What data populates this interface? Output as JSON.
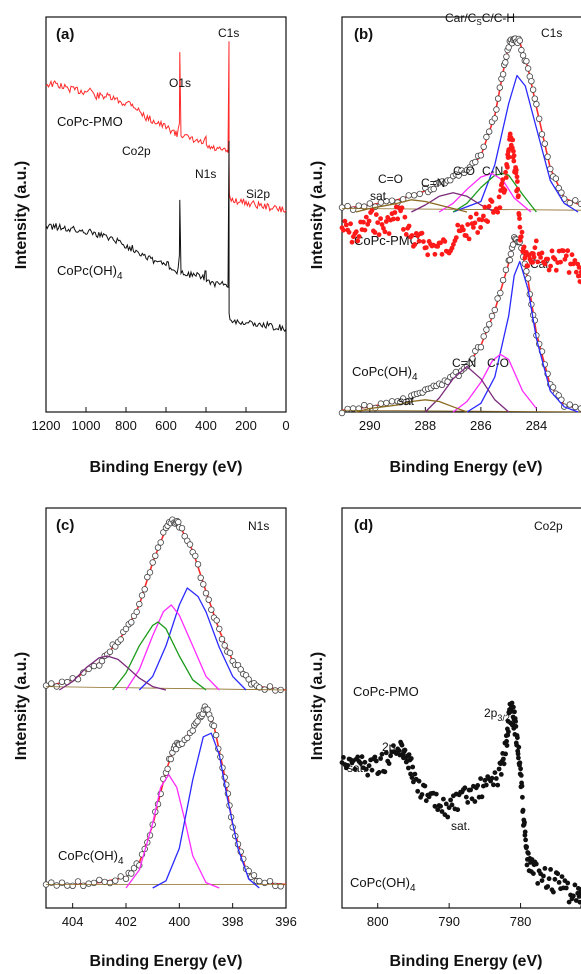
{
  "chart_data": [
    {
      "panel": "(a)",
      "type": "line",
      "xlabel": "Binding Energy (eV)",
      "ylabel": "Intensity (a.u.)",
      "xlim": [
        1200,
        0
      ],
      "xticks": [
        "1200",
        "1000",
        "800",
        "600",
        "400",
        "200",
        "0"
      ],
      "annotations": [
        "C1s",
        "O1s",
        "Co2p",
        "N1s",
        "Si2p"
      ],
      "series": [
        {
          "name": "CoPc-PMO",
          "color": "#ff2a2a",
          "x": [
            1200,
            1150,
            1100,
            1050,
            1000,
            980,
            960,
            900,
            850,
            800,
            780,
            750,
            700,
            650,
            600,
            560,
            545,
            533,
            531,
            525,
            500,
            450,
            410,
            400,
            398,
            390,
            350,
            300,
            290,
            285,
            284.5,
            283,
            280,
            250,
            200,
            150,
            100,
            50,
            0
          ],
          "y": [
            0.83,
            0.83,
            0.82,
            0.815,
            0.81,
            0.82,
            0.8,
            0.8,
            0.79,
            0.78,
            0.785,
            0.77,
            0.745,
            0.735,
            0.72,
            0.71,
            0.7,
            0.735,
            0.915,
            0.705,
            0.695,
            0.685,
            0.68,
            0.695,
            0.675,
            0.67,
            0.665,
            0.66,
            0.66,
            0.93,
            0.62,
            0.555,
            0.54,
            0.535,
            0.53,
            0.525,
            0.52,
            0.515,
            0.51
          ]
        },
        {
          "name": "CoPc(OH)4",
          "color": "#111111",
          "x": [
            1200,
            1150,
            1100,
            1050,
            1000,
            980,
            960,
            900,
            850,
            800,
            750,
            700,
            650,
            600,
            560,
            545,
            533,
            531,
            525,
            500,
            450,
            410,
            400,
            398,
            390,
            350,
            300,
            290,
            285,
            284.5,
            280,
            250,
            200,
            150,
            100,
            50,
            0
          ],
          "y": [
            0.47,
            0.47,
            0.465,
            0.46,
            0.455,
            0.465,
            0.45,
            0.445,
            0.435,
            0.42,
            0.41,
            0.395,
            0.38,
            0.375,
            0.365,
            0.355,
            0.39,
            0.545,
            0.355,
            0.35,
            0.345,
            0.34,
            0.36,
            0.335,
            0.33,
            0.325,
            0.32,
            0.318,
            0.69,
            0.245,
            0.235,
            0.23,
            0.225,
            0.222,
            0.22,
            0.215,
            0.21
          ]
        }
      ]
    },
    {
      "panel": "(b)",
      "type": "line",
      "title": "C1s",
      "xlabel": "Binding Energy (eV)",
      "ylabel": "Intensity (a.u.)",
      "xlim": [
        291,
        282
      ],
      "xticks": [
        "290",
        "288",
        "286",
        "284",
        "282"
      ],
      "annotations": [
        "Car/CsC/C-H",
        "C=O",
        "C=N",
        "C-O",
        "C-N",
        "sat",
        "Car",
        "C=N",
        "C-O",
        "sat"
      ],
      "samples": [
        "CoPc-PMO",
        "CoPc(OH)4"
      ],
      "series": [
        {
          "name": "CoPc-PMO envelope",
          "color": "#ff2a2a",
          "x": [
            291,
            290,
            289,
            288,
            287.5,
            287,
            286.5,
            286,
            285.5,
            285.2,
            285,
            284.8,
            284.6,
            284.3,
            284,
            283.5,
            283,
            282
          ],
          "y": [
            0.02,
            0.04,
            0.07,
            0.12,
            0.16,
            0.2,
            0.24,
            0.32,
            0.55,
            0.8,
            0.95,
            1.0,
            0.97,
            0.82,
            0.6,
            0.25,
            0.08,
            0.01
          ]
        },
        {
          "name": "CoPc-PMO Car/CsC/C-H",
          "color": "#2a2aff",
          "x": [
            287,
            286,
            285.5,
            285,
            284.7,
            284.4,
            284,
            283.5,
            283,
            282.5
          ],
          "y": [
            0.0,
            0.06,
            0.27,
            0.62,
            0.78,
            0.72,
            0.48,
            0.18,
            0.05,
            0.0
          ]
        },
        {
          "name": "CoPc-PMO C-N",
          "color": "#1a9a1a",
          "x": [
            287,
            286.5,
            286,
            285.5,
            285.2,
            285,
            284.5,
            284
          ],
          "y": [
            0.0,
            0.05,
            0.14,
            0.21,
            0.22,
            0.21,
            0.1,
            0.0
          ]
        },
        {
          "name": "CoPc-PMO C-O",
          "color": "#ff2aff",
          "x": [
            287.5,
            287,
            286.5,
            286,
            285.6,
            285.2,
            284.8,
            284.2
          ],
          "y": [
            0.0,
            0.05,
            0.13,
            0.2,
            0.22,
            0.18,
            0.08,
            0.0
          ]
        },
        {
          "name": "CoPc-PMO C=N",
          "color": "#7a2a7a",
          "x": [
            288.5,
            288,
            287.5,
            287,
            286.5,
            286,
            285.5
          ],
          "y": [
            0.0,
            0.04,
            0.09,
            0.11,
            0.09,
            0.04,
            0.0
          ]
        },
        {
          "name": "CoPc-PMO C=O",
          "color": "#8a6a20",
          "x": [
            290.5,
            290,
            289,
            288.5,
            288,
            287.5,
            287,
            286.5
          ],
          "y": [
            0.0,
            0.02,
            0.05,
            0.07,
            0.06,
            0.04,
            0.02,
            0.0
          ]
        },
        {
          "name": "CoPc(OH)4 envelope",
          "color": "#ff2a2a",
          "x": [
            291,
            290,
            289,
            288.5,
            288,
            287.5,
            287,
            286.5,
            286,
            285.5,
            285,
            284.8,
            284.6,
            284.3,
            284,
            283.5,
            283,
            282
          ],
          "y": [
            0.01,
            0.03,
            0.06,
            0.08,
            0.12,
            0.16,
            0.2,
            0.26,
            0.38,
            0.58,
            0.85,
            1.0,
            0.98,
            0.75,
            0.45,
            0.15,
            0.04,
            0.0
          ]
        },
        {
          "name": "CoPc(OH)4 Car",
          "color": "#2a2aff",
          "x": [
            286.5,
            286,
            285.5,
            285,
            284.8,
            284.6,
            284.3,
            284,
            283.5,
            283,
            282.5
          ],
          "y": [
            0.0,
            0.05,
            0.2,
            0.55,
            0.78,
            0.86,
            0.7,
            0.42,
            0.12,
            0.03,
            0.0
          ]
        },
        {
          "name": "CoPc(OH)4 C-O",
          "color": "#ff2aff",
          "x": [
            287,
            286.5,
            286,
            285.6,
            285.3,
            285,
            284.5,
            284
          ],
          "y": [
            0.0,
            0.06,
            0.17,
            0.29,
            0.33,
            0.3,
            0.12,
            0.02
          ]
        },
        {
          "name": "CoPc(OH)4 C=N",
          "color": "#7a2a7a",
          "x": [
            288,
            287.5,
            287,
            286.5,
            286,
            285.5,
            285
          ],
          "y": [
            0.0,
            0.08,
            0.19,
            0.26,
            0.19,
            0.07,
            0.0
          ]
        },
        {
          "name": "CoPc(OH)4 sat",
          "color": "#8a6a20",
          "x": [
            290.5,
            290,
            289,
            288.5,
            288,
            287.5,
            287,
            286.5
          ],
          "y": [
            0.0,
            0.02,
            0.04,
            0.06,
            0.07,
            0.06,
            0.03,
            0.0
          ]
        }
      ]
    },
    {
      "panel": "(c)",
      "type": "line",
      "title": "N1s",
      "xlabel": "Binding Energy (eV)",
      "ylabel": "Intensity (a.u.)",
      "xlim": [
        405,
        396
      ],
      "xticks": [
        "404",
        "402",
        "400",
        "398",
        "396"
      ],
      "samples": [
        "CoPc(OH)4"
      ],
      "series": [
        {
          "name": "CoPc-PMO envelope",
          "color": "#ff2a2a",
          "x": [
            405,
            404,
            403,
            402.5,
            402,
            401.5,
            401,
            400.5,
            400.2,
            400,
            399.5,
            399,
            398.5,
            398,
            397.5,
            397,
            396
          ],
          "y": [
            0.02,
            0.06,
            0.16,
            0.25,
            0.35,
            0.5,
            0.75,
            0.95,
            1.0,
            0.97,
            0.82,
            0.58,
            0.35,
            0.17,
            0.07,
            0.02,
            0.0
          ]
        },
        {
          "name": "CoPc-PMO blue",
          "color": "#2a2aff",
          "x": [
            401.5,
            401,
            400.5,
            400,
            399.7,
            399.3,
            399,
            398.5,
            398,
            397.5
          ],
          "y": [
            0.0,
            0.08,
            0.26,
            0.5,
            0.6,
            0.55,
            0.46,
            0.25,
            0.08,
            0.0
          ]
        },
        {
          "name": "CoPc-PMO magenta",
          "color": "#ff2aff",
          "x": [
            402,
            401.5,
            401,
            400.6,
            400.3,
            400,
            399.5,
            399,
            398.5
          ],
          "y": [
            0.0,
            0.12,
            0.32,
            0.46,
            0.5,
            0.44,
            0.26,
            0.08,
            0.0
          ]
        },
        {
          "name": "CoPc-PMO green",
          "color": "#1a9a1a",
          "x": [
            402.5,
            402,
            401.5,
            401,
            400.8,
            400.5,
            400,
            399.5,
            399
          ],
          "y": [
            0.0,
            0.1,
            0.26,
            0.38,
            0.4,
            0.36,
            0.2,
            0.06,
            0.0
          ]
        },
        {
          "name": "CoPc-PMO purple",
          "color": "#7a2a7a",
          "x": [
            404.5,
            404,
            403.5,
            403,
            402.7,
            402.3,
            402,
            401.5,
            401,
            400.5
          ],
          "y": [
            0.0,
            0.05,
            0.13,
            0.19,
            0.2,
            0.18,
            0.14,
            0.07,
            0.02,
            0.0
          ]
        },
        {
          "name": "CoPc(OH)4 envelope",
          "color": "#ff2a2a",
          "x": [
            405,
            404,
            403,
            402,
            401.5,
            401,
            400.5,
            400.2,
            400,
            399.5,
            399.2,
            399,
            398.7,
            398.3,
            398,
            397.5,
            397,
            396
          ],
          "y": [
            0.02,
            0.02,
            0.03,
            0.06,
            0.14,
            0.35,
            0.65,
            0.78,
            0.8,
            0.88,
            0.96,
            1.0,
            0.9,
            0.62,
            0.35,
            0.1,
            0.03,
            0.02
          ]
        },
        {
          "name": "CoPc(OH)4 magenta",
          "color": "#ff2aff",
          "x": [
            402,
            401.5,
            401,
            400.7,
            400.4,
            400.1,
            399.8,
            399.5,
            399,
            398.5
          ],
          "y": [
            0.0,
            0.1,
            0.36,
            0.56,
            0.63,
            0.56,
            0.38,
            0.18,
            0.03,
            0.0
          ]
        },
        {
          "name": "CoPc(OH)4 blue",
          "color": "#2a2aff",
          "x": [
            401,
            400.5,
            400,
            399.5,
            399.1,
            398.8,
            398.5,
            398.2,
            397.8,
            397.4,
            397
          ],
          "y": [
            0.0,
            0.04,
            0.22,
            0.6,
            0.84,
            0.86,
            0.74,
            0.5,
            0.22,
            0.05,
            0.0
          ]
        }
      ]
    },
    {
      "panel": "(d)",
      "type": "scatter",
      "title": "Co2p",
      "xlabel": "Binding Energy (eV)",
      "ylabel": "Intensity (a.u.)",
      "xlim": [
        805,
        770
      ],
      "xticks": [
        "800",
        "790",
        "780",
        "770"
      ],
      "annotations": [
        "2p3/2",
        "2p1/2",
        "sat.",
        "sat."
      ],
      "samples": [
        "CoPc-PMO",
        "CoPc(OH)4"
      ],
      "series": [
        {
          "name": "CoPc-PMO",
          "color": "#ff1a1a",
          "x": [
            805,
            803,
            801,
            799,
            797,
            795,
            793,
            791,
            789,
            787,
            785,
            783,
            782,
            781.5,
            781,
            780.5,
            780,
            779,
            778,
            776,
            774,
            772,
            771
          ],
          "y": [
            0.6,
            0.58,
            0.62,
            0.6,
            0.64,
            0.57,
            0.56,
            0.55,
            0.58,
            0.6,
            0.63,
            0.66,
            0.72,
            0.8,
            0.78,
            0.7,
            0.58,
            0.53,
            0.55,
            0.52,
            0.53,
            0.5,
            0.48
          ]
        },
        {
          "name": "CoPc(OH)4",
          "color": "#111111",
          "x": [
            805,
            803,
            801,
            799,
            797,
            796,
            795,
            793,
            791,
            789,
            787,
            785,
            783,
            782,
            781.5,
            781,
            780.5,
            780,
            779.5,
            779,
            778,
            776,
            774,
            772,
            771
          ],
          "y": [
            0.32,
            0.31,
            0.3,
            0.31,
            0.34,
            0.33,
            0.28,
            0.22,
            0.2,
            0.21,
            0.23,
            0.25,
            0.28,
            0.35,
            0.43,
            0.42,
            0.37,
            0.28,
            0.15,
            0.07,
            0.05,
            0.03,
            0.01,
            -0.01,
            -0.02
          ]
        }
      ]
    }
  ]
}
